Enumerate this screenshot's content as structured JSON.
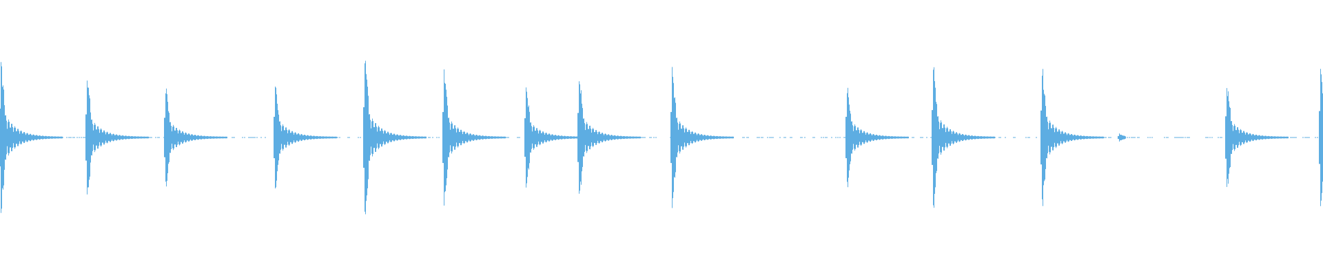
{
  "waveform": {
    "color": "#5dade2",
    "background": "#ffffff",
    "onsets_fraction": [
      0.0005,
      0.0656,
      0.125,
      0.2078,
      0.2755,
      0.3354,
      0.3974,
      0.4375,
      0.5078,
      0.6401,
      0.7052,
      0.7875,
      0.8458,
      0.9271,
      0.9979
    ],
    "peak_amplitudes": [
      0.6,
      0.48,
      0.41,
      0.43,
      0.63,
      0.53,
      0.4,
      0.51,
      0.53,
      0.43,
      0.57,
      0.56,
      0.03,
      0.44,
      0.55
    ]
  }
}
